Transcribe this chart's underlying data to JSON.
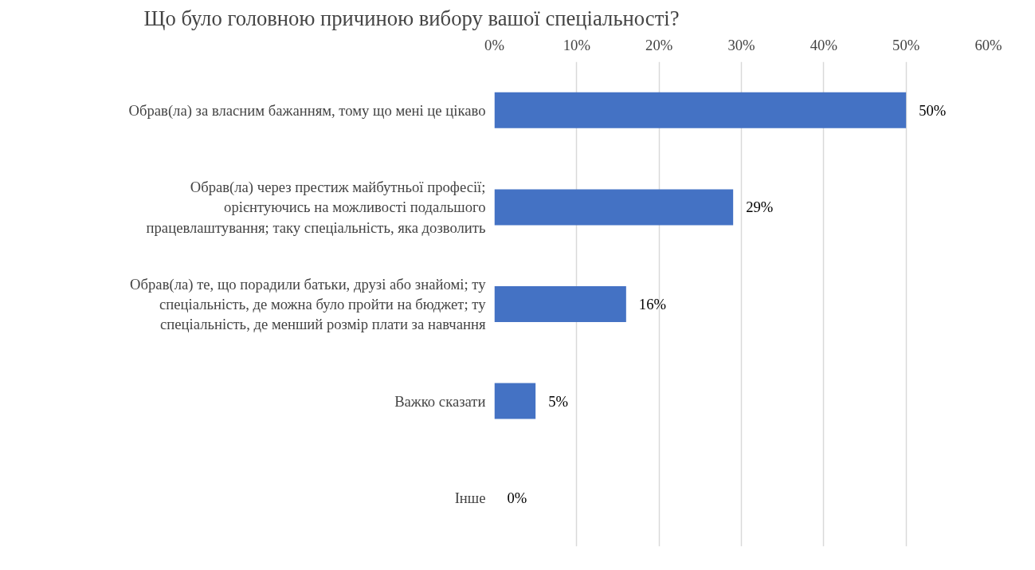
{
  "chart_data": {
    "type": "bar",
    "orientation": "horizontal",
    "title": "Що було головною причиною вибору вашої спеціальності?",
    "categories": [
      "Обрав(ла) за власним бажанням, тому що мені це цікаво",
      "Обрав(ла) через престиж майбутньої професії;\nорієнтуючись на можливості подальшого\nпрацевлаштування; таку спеціальність, яка дозволить",
      "Обрав(ла) те, що порадили батьки, друзі або знайомі; ту\nспеціальність, де можна було пройти на бюджет; ту\nспеціальність, де менший розмір плати за навчання",
      "Важко сказати",
      "Інше"
    ],
    "values": [
      50,
      29,
      16,
      5,
      0
    ],
    "value_labels": [
      "50%",
      "29%",
      "16%",
      "5%",
      "0%"
    ],
    "color": "#4472c4",
    "xlim": [
      0,
      60
    ],
    "xticks": [
      {
        "value": 0,
        "label": "0%"
      },
      {
        "value": 10,
        "label": "10%"
      },
      {
        "value": 20,
        "label": "20%"
      },
      {
        "value": 30,
        "label": "30%"
      },
      {
        "value": 40,
        "label": "40%"
      },
      {
        "value": 50,
        "label": "50%"
      },
      {
        "value": 60,
        "label": "60%"
      }
    ],
    "grid": "x"
  }
}
